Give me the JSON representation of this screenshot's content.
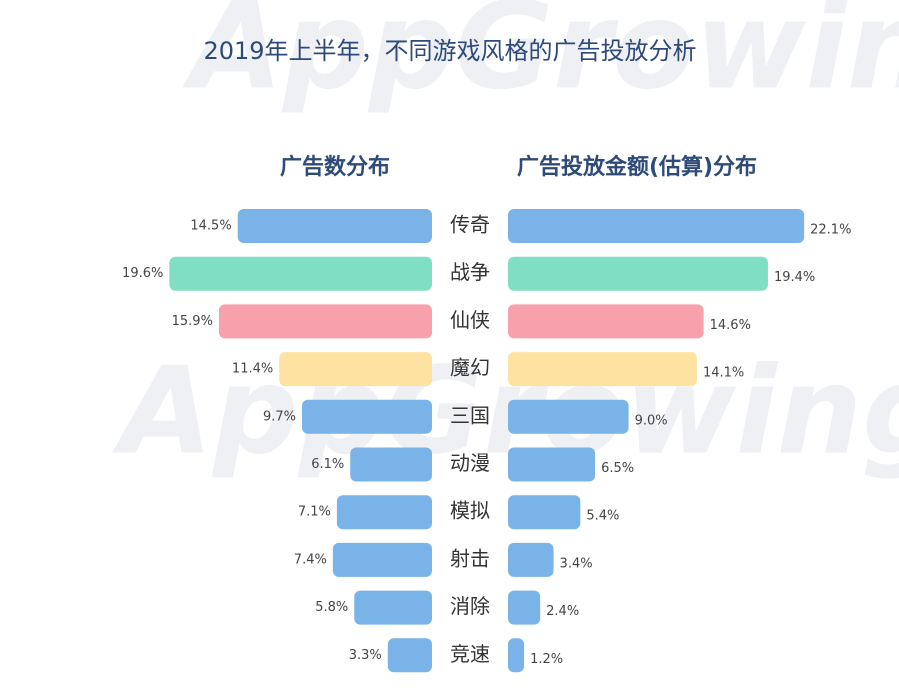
{
  "watermark": "AppGrowing",
  "chart_data": {
    "type": "butterfly",
    "title": "2019年上半年，不同游戏风格的广告投放分析",
    "categories": [
      "传奇",
      "战争",
      "仙侠",
      "魔幻",
      "三国",
      "动漫",
      "模拟",
      "射击",
      "消除",
      "竞速"
    ],
    "colors": [
      "#7ab3e8",
      "#80dfc2",
      "#f7a1ac",
      "#fde2a2",
      "#7ab3e8",
      "#7ab3e8",
      "#7ab3e8",
      "#7ab3e8",
      "#7ab3e8",
      "#7ab3e8"
    ],
    "series": [
      {
        "name": "广告数分布",
        "values": [
          14.5,
          19.6,
          15.9,
          11.4,
          9.7,
          6.1,
          7.1,
          7.4,
          5.8,
          3.3
        ],
        "value_labels": [
          "14.5%",
          "19.6%",
          "15.9%",
          "11.4%",
          "9.7%",
          "6.1%",
          "7.1%",
          "7.4%",
          "5.8%",
          "3.3%"
        ]
      },
      {
        "name": "广告投放金额(估算)分布",
        "values": [
          22.1,
          19.4,
          14.6,
          14.1,
          9.0,
          6.5,
          5.4,
          3.4,
          2.4,
          1.2
        ],
        "value_labels": [
          "22.1%",
          "19.4%",
          "14.6%",
          "14.1%",
          "9.0%",
          "6.5%",
          "5.4%",
          "3.4%",
          "2.4%",
          "1.2%"
        ]
      }
    ]
  }
}
